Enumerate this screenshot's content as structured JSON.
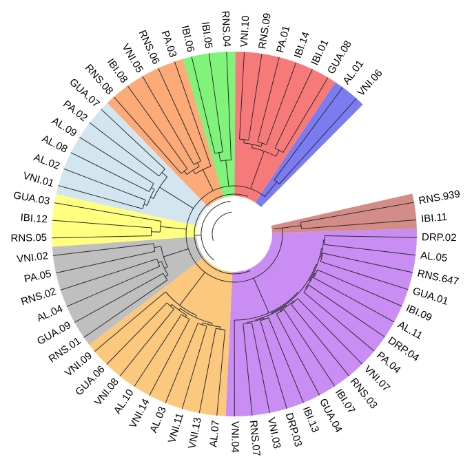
{
  "diagram": {
    "type": "circular-dendrogram",
    "clades": [
      {
        "name": "salmon",
        "color": "#d48c88",
        "leaves": [
          "RNS.939",
          "IBI.11"
        ]
      },
      {
        "name": "purple",
        "color": "#c98df4",
        "leaves": [
          "DRP.02",
          "AL.05",
          "RNS.647",
          "GUA.01",
          "IBI.09",
          "AL.11",
          "DRP.04",
          "PA.04",
          "VNI.07",
          "RNS.03",
          "IBI.07",
          "GUA.04",
          "IBI.13",
          "DRP.03",
          "VNI.03",
          "RNS.07",
          "VNI.04"
        ]
      },
      {
        "name": "orange-lower",
        "color": "#fbc87e",
        "leaves": [
          "AL.07",
          "VNI.13",
          "VNI.11",
          "AL.03",
          "VNI.14",
          "AL.10",
          "VNI.08",
          "GUA.06",
          "VNI.09"
        ]
      },
      {
        "name": "gray",
        "color": "#bfbfbf",
        "leaves": [
          "RNS.01",
          "GUA.09",
          "AL.04",
          "RNS.02",
          "PA.05",
          "VNI.02"
        ]
      },
      {
        "name": "yellow",
        "color": "#ffff80",
        "leaves": [
          "RNS.05",
          "IBI.12",
          "GUA.03"
        ]
      },
      {
        "name": "lightblue",
        "color": "#d3e6ef",
        "leaves": [
          "VNI.01",
          "AL.02",
          "AL.08",
          "AL.09",
          "PA.02",
          "GUA.07"
        ]
      },
      {
        "name": "orange-upper",
        "color": "#fbaa78",
        "leaves": [
          "RNS.08",
          "IBI.08",
          "VNI.05",
          "RNS.06",
          "PA.03"
        ]
      },
      {
        "name": "green",
        "color": "#80f47a",
        "leaves": [
          "IBI.06",
          "IBI.05",
          "RNS.04"
        ]
      },
      {
        "name": "red",
        "color": "#f77a7a",
        "leaves": [
          "VNI.10",
          "RNS.09",
          "PA.01",
          "IBI.14",
          "IBI.01",
          "GUA.08"
        ]
      },
      {
        "name": "blue",
        "color": "#7c7cf2",
        "leaves": [
          "AL.01",
          "VNI.06"
        ]
      }
    ]
  }
}
